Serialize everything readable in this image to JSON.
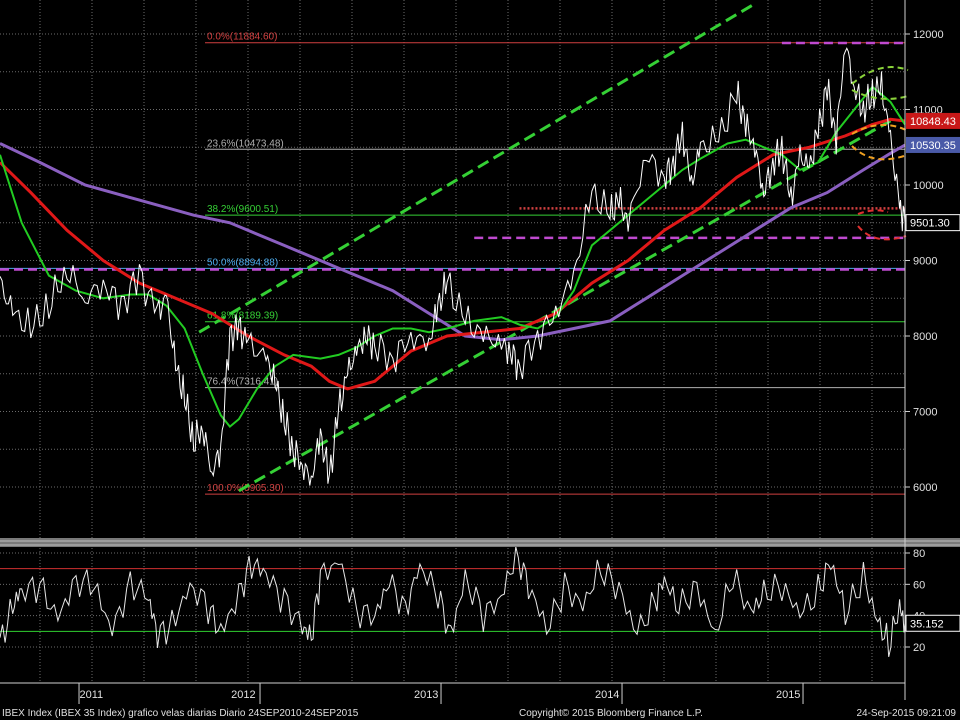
{
  "footer": {
    "left": "IBEX Index (IBEX 35 Index) grafico velas diarias  Diario 24SEP2010-24SEP2015",
    "center": "Copyright© 2015 Bloomberg Finance L.P.",
    "right": "24-Sep-2015 09:21:09"
  },
  "colors": {
    "background": "#000000",
    "grid": "#6b6b6b",
    "price": "#ffffff",
    "ma_fast": "#22cc22",
    "ma_mid": "#e01818",
    "ma_slow": "#8a5fc0",
    "channel": "#35d035",
    "fib": "#d04040",
    "magenta": "#c04ad0",
    "tag_red": "#c81818",
    "tag_purple": "#4a5aa8",
    "tag_black": "#000000"
  },
  "chart_data": [
    {
      "type": "line",
      "name": "price-panel",
      "x_labels": [
        "2011",
        "2012",
        "2013",
        "2014",
        "2015"
      ],
      "x_range": [
        2010.73,
        2015.73
      ],
      "ylim": [
        5300,
        12500
      ],
      "yticks": [
        6000,
        7000,
        8000,
        9000,
        10000,
        11000,
        12000
      ],
      "grid": true,
      "series": [
        {
          "role": "price",
          "x": [
            2010.73,
            2010.8,
            2010.9,
            2011.0,
            2011.1,
            2011.2,
            2011.3,
            2011.4,
            2011.5,
            2011.6,
            2011.65,
            2011.7,
            2011.75,
            2011.8,
            2011.85,
            2011.9,
            2011.95,
            2012.0,
            2012.05,
            2012.1,
            2012.2,
            2012.25,
            2012.3,
            2012.35,
            2012.4,
            2012.45,
            2012.5,
            2012.55,
            2012.6,
            2012.65,
            2012.7,
            2012.75,
            2012.8,
            2012.9,
            2013.0,
            2013.1,
            2013.15,
            2013.2,
            2013.3,
            2013.4,
            2013.5,
            2013.55,
            2013.6,
            2013.7,
            2013.8,
            2013.9,
            2014.0,
            2014.1,
            2014.15,
            2014.2,
            2014.3,
            2014.4,
            2014.45,
            2014.5,
            2014.55,
            2014.6,
            2014.7,
            2014.8,
            2014.85,
            2014.9,
            2014.95,
            2015.0,
            2015.05,
            2015.1,
            2015.15,
            2015.2,
            2015.25,
            2015.3,
            2015.35,
            2015.4,
            2015.45,
            2015.5,
            2015.55,
            2015.6,
            2015.65,
            2015.7,
            2015.73
          ],
          "y": [
            8700,
            8300,
            8100,
            8400,
            8900,
            8500,
            8700,
            8400,
            8800,
            8300,
            8500,
            7600,
            7200,
            6600,
            6800,
            6200,
            6500,
            8000,
            8100,
            7900,
            7700,
            7400,
            6900,
            6500,
            6300,
            6100,
            6700,
            6100,
            7000,
            7500,
            7800,
            8000,
            7900,
            7700,
            8000,
            7900,
            8400,
            8700,
            8200,
            8000,
            7900,
            7800,
            7600,
            8000,
            8300,
            8800,
            9900,
            9600,
            9800,
            9500,
            10400,
            10100,
            10300,
            10700,
            10000,
            10500,
            10600,
            11200,
            10800,
            10500,
            9900,
            10300,
            10500,
            9800,
            10400,
            10200,
            10700,
            11300,
            10600,
            11900,
            11300,
            11000,
            11200,
            11300,
            10600,
            9700,
            9501
          ]
        },
        {
          "role": "ma_fast",
          "x": [
            2010.73,
            2010.85,
            2011.0,
            2011.15,
            2011.3,
            2011.45,
            2011.55,
            2011.65,
            2011.75,
            2011.85,
            2011.95,
            2012.0,
            2012.05,
            2012.15,
            2012.25,
            2012.35,
            2012.5,
            2012.6,
            2012.7,
            2012.8,
            2012.9,
            2013.0,
            2013.1,
            2013.2,
            2013.35,
            2013.5,
            2013.6,
            2013.7,
            2013.8,
            2013.9,
            2014.0,
            2014.2,
            2014.35,
            2014.5,
            2014.6,
            2014.75,
            2014.85,
            2014.95,
            2015.05,
            2015.15,
            2015.25,
            2015.35,
            2015.45,
            2015.55,
            2015.65,
            2015.73
          ],
          "y": [
            10400,
            9500,
            8800,
            8600,
            8500,
            8550,
            8550,
            8400,
            8100,
            7500,
            6950,
            6800,
            6900,
            7300,
            7600,
            7750,
            7700,
            7750,
            7850,
            8000,
            8100,
            8100,
            8050,
            8100,
            8200,
            8250,
            8150,
            8100,
            8250,
            8600,
            9200,
            9600,
            9900,
            10200,
            10350,
            10550,
            10600,
            10500,
            10400,
            10200,
            10300,
            10700,
            11000,
            11300,
            11100,
            10800
          ]
        },
        {
          "role": "ma_mid",
          "x": [
            2010.73,
            2010.9,
            2011.1,
            2011.3,
            2011.5,
            2011.7,
            2011.9,
            2012.1,
            2012.3,
            2012.45,
            2012.55,
            2012.65,
            2012.8,
            2013.0,
            2013.2,
            2013.4,
            2013.6,
            2013.8,
            2014.0,
            2014.2,
            2014.4,
            2014.6,
            2014.8,
            2015.0,
            2015.2,
            2015.4,
            2015.55,
            2015.65,
            2015.73
          ],
          "y": [
            10300,
            9900,
            9400,
            9000,
            8700,
            8500,
            8300,
            8000,
            7750,
            7600,
            7400,
            7300,
            7400,
            7800,
            8000,
            8050,
            8100,
            8300,
            8700,
            9000,
            9400,
            9700,
            10100,
            10400,
            10500,
            10650,
            10800,
            10870,
            10848
          ]
        },
        {
          "role": "ma_slow",
          "x": [
            2010.73,
            2010.95,
            2011.2,
            2011.5,
            2011.8,
            2012.0,
            2012.3,
            2012.6,
            2012.9,
            2013.1,
            2013.3,
            2013.5,
            2013.7,
            2013.9,
            2014.1,
            2014.3,
            2014.5,
            2014.7,
            2014.9,
            2015.1,
            2015.3,
            2015.5,
            2015.65,
            2015.73
          ],
          "y": [
            10550,
            10300,
            10000,
            9800,
            9600,
            9500,
            9200,
            8900,
            8600,
            8300,
            8000,
            7950,
            8000,
            8100,
            8200,
            8500,
            8800,
            9100,
            9400,
            9700,
            9900,
            10200,
            10420,
            10530
          ]
        }
      ],
      "fibonacci": [
        {
          "label": "0.0%(11884.60)",
          "value": 11884.6
        },
        {
          "label": "23.6%(10473.48)",
          "value": 10473.48
        },
        {
          "label": "38.2%(9600.51)",
          "value": 9600.51
        },
        {
          "label": "50.0%(8894.88)",
          "value": 8894.88
        },
        {
          "label": "61.8%(8189.39)",
          "value": 8189.39
        },
        {
          "label": "76.4%(7316.41)",
          "value": 7316.41
        },
        {
          "label": "100.0%(5905.30)",
          "value": 5905.3
        }
      ],
      "channel_lines": [
        {
          "x": [
            2011.83,
            2014.9
          ],
          "y": [
            8050,
            12400
          ]
        },
        {
          "x": [
            2012.05,
            2015.65
          ],
          "y": [
            5950,
            10850
          ]
        }
      ],
      "horizontal_dashed": [
        {
          "color": "magenta",
          "value": 11880,
          "x_from": 2015.05
        },
        {
          "color": "magenta",
          "value": 9300,
          "x_from": 2013.35
        },
        {
          "color": "magenta",
          "value": 8880,
          "x_from": 2010.73
        },
        {
          "color": "fib",
          "value": 9690,
          "x_from": 2013.6
        }
      ],
      "tags": [
        {
          "label": "10848.43",
          "value": 10848.43,
          "style": "red"
        },
        {
          "label": "10530.35",
          "value": 10530.35,
          "style": "purple"
        },
        {
          "label": "9501.30",
          "value": 9501.3,
          "style": "black"
        }
      ]
    },
    {
      "type": "line",
      "name": "rsi-panel",
      "x_range": [
        2010.73,
        2015.73
      ],
      "ylim": [
        10,
        85
      ],
      "yticks": [
        20,
        40,
        60,
        80
      ],
      "levels": [
        30,
        70
      ],
      "series": [
        {
          "role": "rsi",
          "x": [
            2010.73,
            2010.8,
            2010.85,
            2010.95,
            2011.05,
            2011.15,
            2011.25,
            2011.35,
            2011.45,
            2011.55,
            2011.6,
            2011.68,
            2011.78,
            2011.88,
            2011.95,
            2012.05,
            2012.12,
            2012.2,
            2012.3,
            2012.4,
            2012.45,
            2012.5,
            2012.6,
            2012.7,
            2012.8,
            2012.88,
            2012.97,
            2013.05,
            2013.15,
            2013.22,
            2013.3,
            2013.4,
            2013.5,
            2013.58,
            2013.65,
            2013.75,
            2013.85,
            2013.95,
            2014.05,
            2014.15,
            2014.25,
            2014.35,
            2014.4,
            2014.48,
            2014.58,
            2014.68,
            2014.78,
            2014.88,
            2014.95,
            2015.05,
            2015.15,
            2015.25,
            2015.32,
            2015.4,
            2015.5,
            2015.58,
            2015.64,
            2015.7,
            2015.73
          ],
          "y": [
            22,
            48,
            55,
            58,
            40,
            63,
            58,
            30,
            62,
            52,
            26,
            35,
            60,
            45,
            28,
            55,
            74,
            65,
            50,
            35,
            25,
            64,
            76,
            44,
            38,
            62,
            45,
            72,
            52,
            28,
            65,
            40,
            50,
            82,
            60,
            30,
            58,
            48,
            70,
            55,
            30,
            50,
            62,
            44,
            60,
            28,
            64,
            42,
            56,
            58,
            40,
            56,
            76,
            40,
            64,
            38,
            21,
            44,
            35.152
          ]
        }
      ],
      "tags": [
        {
          "label": "35.152",
          "value": 35.152,
          "style": "black"
        }
      ]
    }
  ]
}
